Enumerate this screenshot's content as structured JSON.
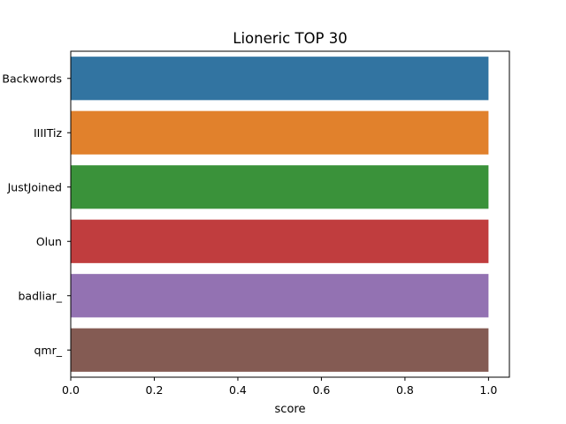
{
  "chart_data": {
    "type": "bar",
    "orientation": "horizontal",
    "title": "Lioneric TOP 30",
    "xlabel": "score",
    "ylabel": "",
    "categories": [
      "Backwords",
      "IIIITiz",
      "JustJoined",
      "Olun",
      "badliar_",
      "qmr_"
    ],
    "values": [
      1.0,
      1.0,
      1.0,
      1.0,
      1.0,
      1.0
    ],
    "xlim": [
      0,
      1.05
    ],
    "xticks": [
      0.0,
      0.2,
      0.4,
      0.6,
      0.8,
      1.0
    ],
    "xtick_labels": [
      "0.0",
      "0.2",
      "0.4",
      "0.6",
      "0.8",
      "1.0"
    ],
    "grid": false,
    "colors": [
      "#3274a1",
      "#e1812c",
      "#3a923a",
      "#c03d3e",
      "#9372b2",
      "#845b53"
    ]
  }
}
